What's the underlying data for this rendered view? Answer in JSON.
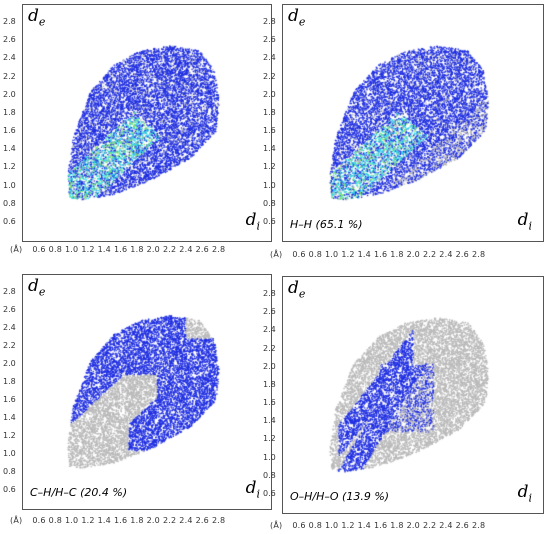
{
  "chart_data": [
    {
      "type": "scatter",
      "xlabel": "di",
      "ylabel": "de",
      "axis_unit": "(Å)",
      "xlim": [
        0.4,
        3.0
      ],
      "ylim": [
        0.4,
        3.0
      ],
      "xticks": [
        "0.6",
        "0.8",
        "1.0",
        "1.2",
        "1.4",
        "1.6",
        "1.8",
        "2.0",
        "2.2",
        "2.4",
        "2.6",
        "2.8"
      ],
      "yticks": [
        "0.6",
        "0.8",
        "1.0",
        "1.2",
        "1.4",
        "1.6",
        "1.8",
        "2.0",
        "2.2",
        "2.4",
        "2.6",
        "2.8"
      ],
      "label": "",
      "highlight": "full"
    },
    {
      "type": "scatter",
      "xlabel": "di",
      "ylabel": "de",
      "axis_unit": "(Å)",
      "xlim": [
        0.4,
        3.0
      ],
      "ylim": [
        0.4,
        3.0
      ],
      "xticks": [
        "0.6",
        "0.8",
        "1.0",
        "1.2",
        "1.4",
        "1.6",
        "1.8",
        "2.0",
        "2.2",
        "2.4",
        "2.6",
        "2.8"
      ],
      "yticks": [
        "0.6",
        "0.8",
        "1.0",
        "1.2",
        "1.4",
        "1.6",
        "1.8",
        "2.0",
        "2.2",
        "2.4",
        "2.6",
        "2.8"
      ],
      "label": "H–H (65.1 %)",
      "highlight": "HH"
    },
    {
      "type": "scatter",
      "xlabel": "di",
      "ylabel": "de",
      "axis_unit": "(Å)",
      "xlim": [
        0.4,
        3.0
      ],
      "ylim": [
        0.4,
        3.0
      ],
      "xticks": [
        "0.6",
        "0.8",
        "1.0",
        "1.2",
        "1.4",
        "1.6",
        "1.8",
        "2.0",
        "2.2",
        "2.4",
        "2.6",
        "2.8"
      ],
      "yticks": [
        "0.6",
        "0.8",
        "1.0",
        "1.2",
        "1.4",
        "1.6",
        "1.8",
        "2.0",
        "2.2",
        "2.4",
        "2.6",
        "2.8"
      ],
      "label": "C–H/H–C (20.4 %)",
      "highlight": "CH"
    },
    {
      "type": "scatter",
      "xlabel": "di",
      "ylabel": "de",
      "axis_unit": "(Å)",
      "xlim": [
        0.4,
        3.0
      ],
      "ylim": [
        0.4,
        3.0
      ],
      "xticks": [
        "0.6",
        "0.8",
        "1.0",
        "1.2",
        "1.4",
        "1.6",
        "1.8",
        "2.0",
        "2.2",
        "2.4",
        "2.6",
        "2.8"
      ],
      "yticks": [
        "0.6",
        "0.8",
        "1.0",
        "1.2",
        "1.4",
        "1.6",
        "1.8",
        "2.0",
        "2.2",
        "2.4",
        "2.6",
        "2.8"
      ],
      "label": "O–H/H–O (13.9 %)",
      "highlight": "OH"
    }
  ],
  "colors": {
    "gray": "#b9b9b9",
    "blue": "#1f2ee0",
    "cyan": "#2fd8e8",
    "green": "#7be36b"
  }
}
